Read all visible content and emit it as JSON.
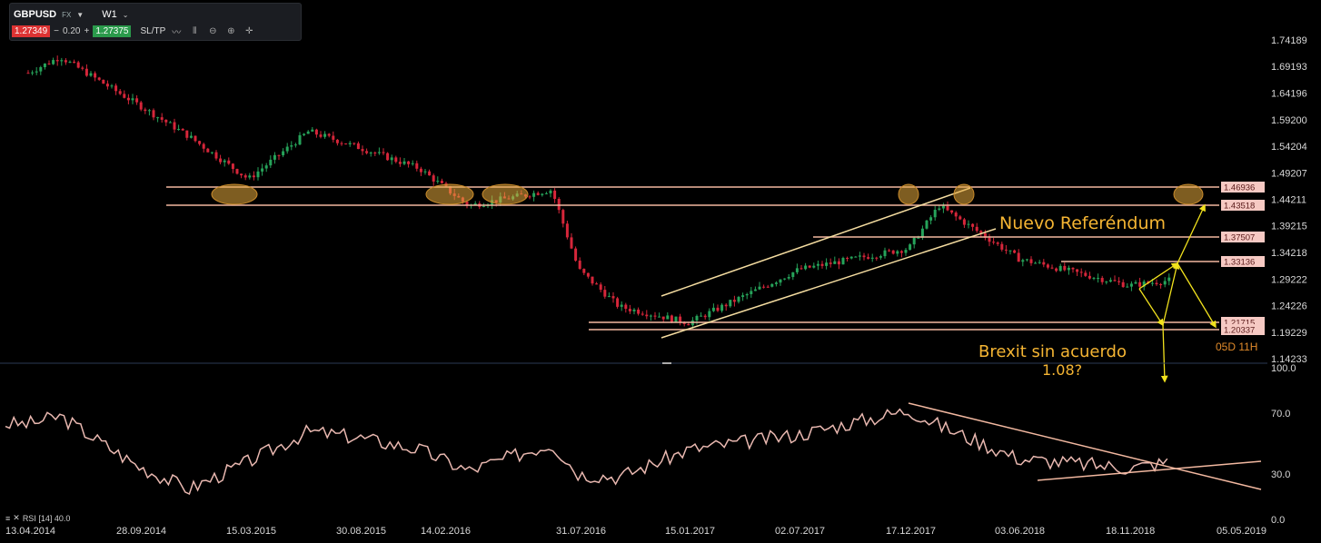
{
  "toolbar": {
    "symbol": "GBPUSD",
    "instrument_type": "FX",
    "timeframe": "W1",
    "bid": "1.27349",
    "spread_minus": "−",
    "spread": "0.20",
    "spread_plus": "+",
    "ask": "1.27375",
    "sltp_label": "SL/TP",
    "icons": [
      "line-chart-icon",
      "candles-icon",
      "zoom-out-icon",
      "zoom-in-icon",
      "crosshair-icon"
    ]
  },
  "colors": {
    "background": "#000000",
    "bull": "#26a35a",
    "bear": "#d6263a",
    "level_line": "#f2b8a0",
    "channel_line": "#f4dca0",
    "annotation": "#f5b533",
    "arrow": "#f2e21d",
    "rsi_line": "#e9b8b0",
    "price_tag_bg": "#f6c9c3"
  },
  "price_axis": {
    "labels": [
      "1.74189",
      "1.69193",
      "1.64196",
      "1.59200",
      "1.54204",
      "1.49207",
      "1.44211",
      "1.39215",
      "1.34218",
      "1.29222",
      "1.24226",
      "1.19229",
      "1.14233"
    ]
  },
  "rsi_axis": {
    "labels": [
      "100.0",
      "70.0",
      "30.0",
      "0.0"
    ]
  },
  "time_axis": {
    "labels": [
      "13.04.2014",
      "28.09.2014",
      "15.03.2015",
      "30.08.2015",
      "14.02.2016",
      "31.07.2016",
      "15.01.2017",
      "02.07.2017",
      "17.12.2017",
      "03.06.2018",
      "18.11.2018",
      "05.05.2019"
    ]
  },
  "price_tags": [
    "1.46936",
    "1.43518",
    "1.37507",
    "1.33136",
    "1.21715",
    "1.20337"
  ],
  "annotations": {
    "referendum": "Nuevo Referéndum",
    "brexit_line1": "Brexit sin acuerdo",
    "brexit_line2": "1.08?",
    "countdown": "05D 11H"
  },
  "rsi_label": "RSI [14] 40.0",
  "chart_data": {
    "type": "candlestick",
    "symbol": "GBPUSD",
    "timeframe": "W1",
    "y_range": [
      1.14233,
      1.74189
    ],
    "rsi_range": [
      0,
      100
    ],
    "horizontal_levels": [
      1.46936,
      1.43518,
      1.37507,
      1.33136,
      1.21715,
      1.20337
    ],
    "price_close_path": [
      [
        "13.04.2014",
        1.68
      ],
      [
        "01.06.2014",
        1.71
      ],
      [
        "28.09.2014",
        1.62
      ],
      [
        "15.12.2014",
        1.56
      ],
      [
        "15.03.2015",
        1.48
      ],
      [
        "15.06.2015",
        1.57
      ],
      [
        "30.08.2015",
        1.54
      ],
      [
        "01.12.2015",
        1.5
      ],
      [
        "14.02.2016",
        1.43
      ],
      [
        "20.06.2016",
        1.46
      ],
      [
        "31.07.2016",
        1.31
      ],
      [
        "01.10.2016",
        1.24
      ],
      [
        "15.01.2017",
        1.21
      ],
      [
        "02.07.2017",
        1.31
      ],
      [
        "17.12.2017",
        1.35
      ],
      [
        "01.02.2018",
        1.43
      ],
      [
        "03.06.2018",
        1.33
      ],
      [
        "18.11.2018",
        1.28
      ],
      [
        "20.01.2019",
        1.29
      ]
    ],
    "rsi_path": [
      [
        "13.04.2014",
        63
      ],
      [
        "01.06.2014",
        68
      ],
      [
        "28.09.2014",
        35
      ],
      [
        "15.12.2014",
        20
      ],
      [
        "15.03.2015",
        38
      ],
      [
        "15.06.2015",
        58
      ],
      [
        "30.08.2015",
        54
      ],
      [
        "01.12.2015",
        46
      ],
      [
        "14.02.2016",
        32
      ],
      [
        "20.06.2016",
        50
      ],
      [
        "31.07.2016",
        30
      ],
      [
        "01.10.2016",
        28
      ],
      [
        "15.01.2017",
        46
      ],
      [
        "02.07.2017",
        56
      ],
      [
        "17.12.2017",
        72
      ],
      [
        "01.02.2018",
        62
      ],
      [
        "03.06.2018",
        40
      ],
      [
        "18.11.2018",
        34
      ],
      [
        "20.01.2019",
        38
      ]
    ]
  }
}
